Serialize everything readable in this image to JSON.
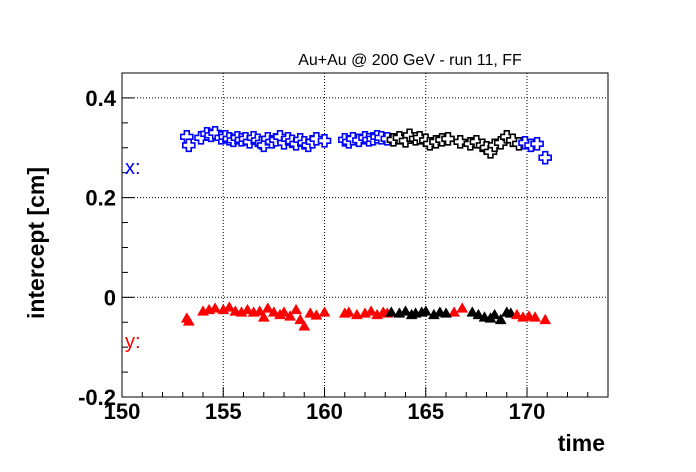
{
  "chart_data": {
    "type": "scatter",
    "title": "Au+Au @ 200 GeV - run 11, FF",
    "xlabel": "time",
    "ylabel": "intercept [cm]",
    "xlim": [
      150,
      174
    ],
    "ylim": [
      -0.2,
      0.45
    ],
    "x_ticks": [
      "150",
      "155",
      "160",
      "165",
      "170"
    ],
    "y_ticks": [
      "-0.2",
      "0",
      "0.2",
      "0.4"
    ],
    "grid": true,
    "labels": {
      "x": "x:",
      "y": "y:"
    },
    "colors": {
      "x_series": "#0000ff",
      "y_series": "#ff0000",
      "secondary": "#000000",
      "grid": "#000000"
    },
    "series": [
      {
        "label_key": "x",
        "color": "#0000ff",
        "marker": "open-cross",
        "x": [
          153.2,
          153.3,
          153.9,
          154.2,
          154.4,
          154.6,
          154.9,
          155.1,
          155.3,
          155.5,
          155.7,
          155.9,
          156.1,
          156.3,
          156.5,
          156.7,
          156.9,
          157.0,
          157.2,
          157.4,
          157.6,
          157.8,
          158.0,
          158.2,
          158.4,
          158.6,
          158.8,
          159.0,
          159.2,
          159.4,
          159.6,
          160.0,
          161.0,
          161.2,
          161.4,
          161.7,
          162.0,
          162.2,
          162.4,
          162.6,
          162.8,
          163.1
        ],
        "y": [
          0.322,
          0.305,
          0.32,
          0.328,
          0.325,
          0.33,
          0.32,
          0.322,
          0.318,
          0.315,
          0.32,
          0.316,
          0.318,
          0.312,
          0.32,
          0.315,
          0.31,
          0.305,
          0.318,
          0.312,
          0.316,
          0.322,
          0.31,
          0.318,
          0.313,
          0.308,
          0.316,
          0.31,
          0.305,
          0.312,
          0.318,
          0.314,
          0.316,
          0.312,
          0.318,
          0.315,
          0.32,
          0.316,
          0.318,
          0.322,
          0.32,
          0.318
        ]
      },
      {
        "label_key": "x",
        "color": "#000000",
        "marker": "open-cross",
        "x": [
          163.4,
          163.7,
          164.0,
          164.2,
          164.5,
          164.7,
          165.0,
          165.2,
          165.5,
          165.8,
          166.1,
          166.7,
          167.2,
          167.5,
          167.8,
          168.0,
          168.2,
          168.4,
          168.7,
          169.0,
          169.3,
          169.6
        ],
        "y": [
          0.316,
          0.32,
          0.314,
          0.325,
          0.318,
          0.32,
          0.315,
          0.308,
          0.312,
          0.316,
          0.318,
          0.312,
          0.308,
          0.312,
          0.305,
          0.3,
          0.292,
          0.305,
          0.31,
          0.322,
          0.315,
          0.308
        ]
      },
      {
        "label_key": "x",
        "color": "#0000ff",
        "marker": "open-cross",
        "x": [
          169.9,
          170.2,
          170.5,
          170.9
        ],
        "y": [
          0.31,
          0.305,
          0.308,
          0.28
        ]
      },
      {
        "label_key": "y",
        "color": "#ff0000",
        "marker": "filled-triangle",
        "x": [
          153.2,
          153.3,
          154.0,
          154.3,
          154.6,
          155.0,
          155.3,
          155.6,
          155.9,
          156.2,
          156.5,
          156.8,
          157.0,
          157.2,
          157.5,
          157.8,
          158.0,
          158.3,
          158.6,
          158.8,
          159.0,
          159.3,
          159.6,
          160.0,
          161.0,
          161.2,
          161.6,
          162.0,
          162.3,
          162.6,
          162.9,
          163.1,
          166.4,
          166.8
        ],
        "y": [
          -0.042,
          -0.048,
          -0.028,
          -0.025,
          -0.022,
          -0.025,
          -0.02,
          -0.028,
          -0.03,
          -0.025,
          -0.03,
          -0.028,
          -0.04,
          -0.022,
          -0.03,
          -0.035,
          -0.03,
          -0.038,
          -0.025,
          -0.045,
          -0.058,
          -0.032,
          -0.036,
          -0.03,
          -0.032,
          -0.03,
          -0.035,
          -0.032,
          -0.028,
          -0.035,
          -0.03,
          -0.032,
          -0.03,
          -0.022
        ]
      },
      {
        "label_key": "y",
        "color": "#000000",
        "marker": "filled-triangle",
        "x": [
          163.3,
          163.7,
          164.0,
          164.3,
          164.5,
          164.8,
          165.0,
          165.4,
          165.7,
          166.0,
          167.3,
          167.6,
          167.9,
          168.2,
          168.4,
          168.7,
          169.0,
          169.2
        ],
        "y": [
          -0.03,
          -0.032,
          -0.028,
          -0.035,
          -0.032,
          -0.03,
          -0.028,
          -0.035,
          -0.03,
          -0.032,
          -0.03,
          -0.035,
          -0.04,
          -0.042,
          -0.035,
          -0.045,
          -0.03,
          -0.032
        ]
      },
      {
        "label_key": "y",
        "color": "#ff0000",
        "marker": "filled-triangle",
        "x": [
          169.5,
          169.8,
          170.1,
          170.4,
          170.9
        ],
        "y": [
          -0.035,
          -0.04,
          -0.038,
          -0.04,
          -0.045
        ]
      }
    ]
  }
}
